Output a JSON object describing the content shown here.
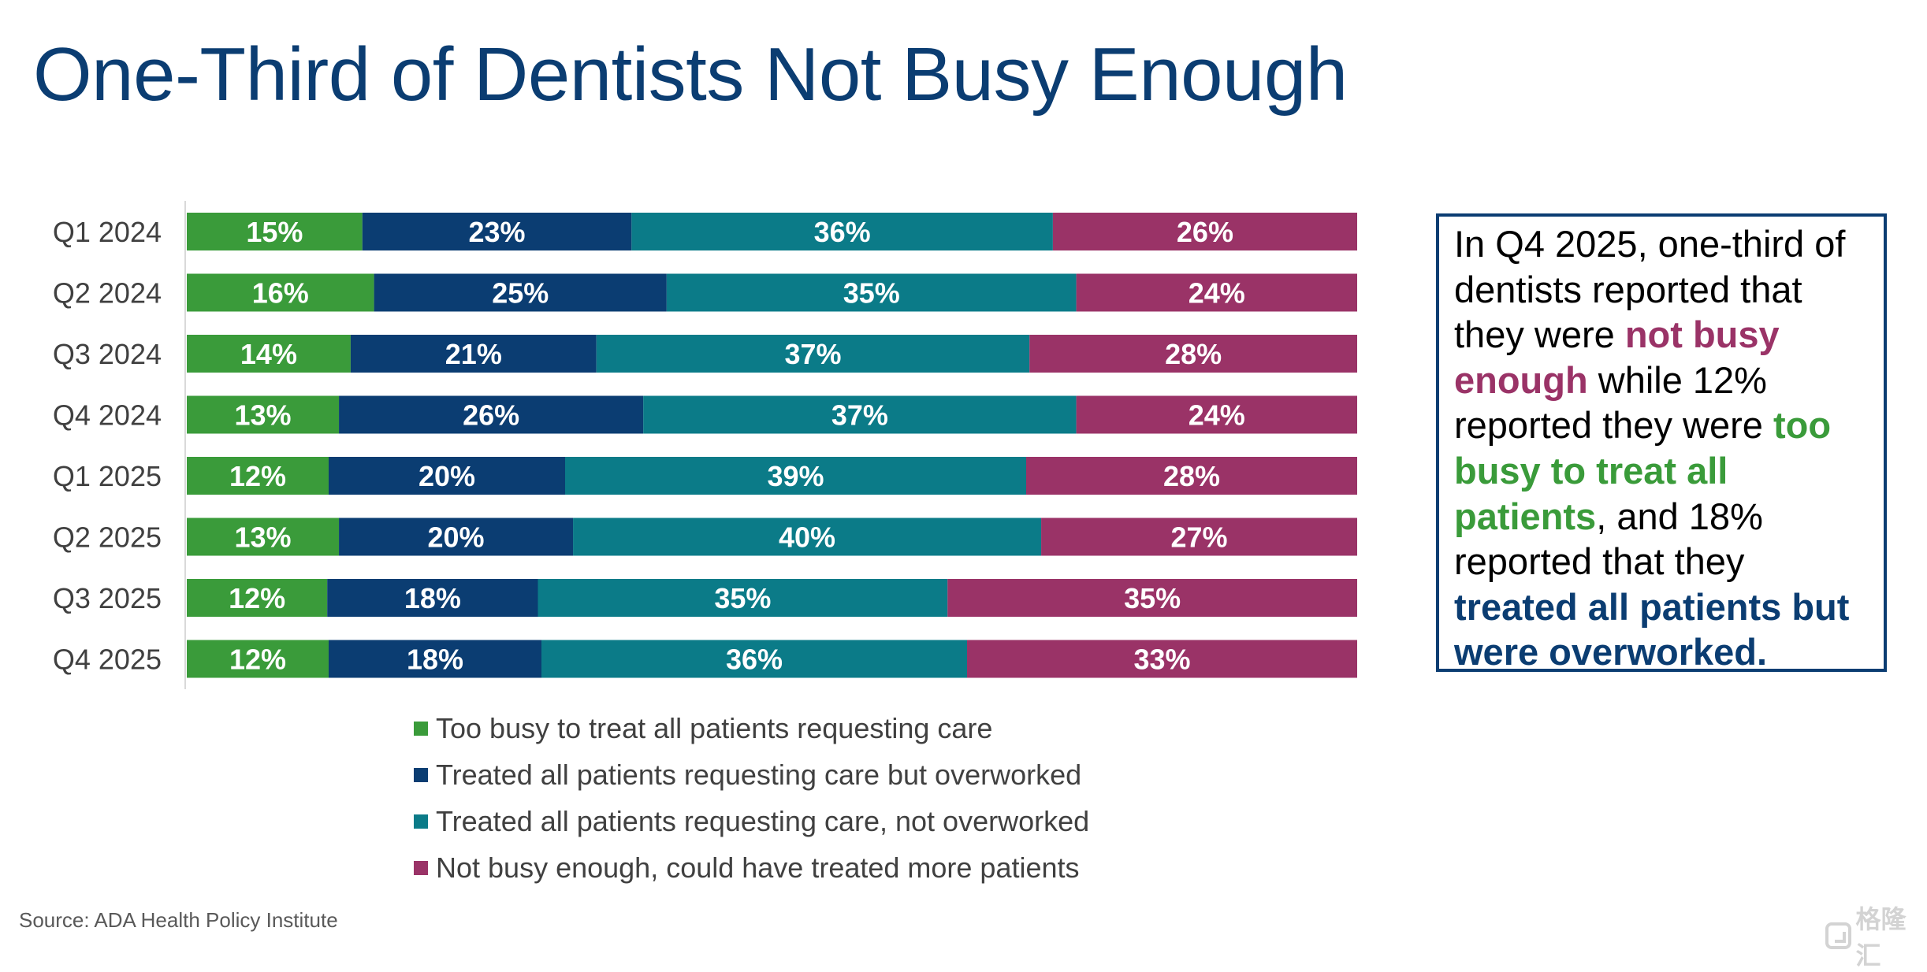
{
  "page": {
    "title": "One-Third of Dentists Not Busy Enough",
    "source": "Source: ADA Health Policy Institute",
    "watermark": "格隆汇"
  },
  "callout": {
    "parts": [
      {
        "text": "In Q4 2025, one-third of dentists reported that they were ",
        "style": "plain"
      },
      {
        "text": "not busy enough",
        "style": "maroon"
      },
      {
        "text": " while 12% reported they were ",
        "style": "plain"
      },
      {
        "text": "too busy to treat all patients",
        "style": "green"
      },
      {
        "text": ", and 18% reported that they ",
        "style": "plain"
      },
      {
        "text": "treated all patients but were overworked.",
        "style": "navy"
      }
    ]
  },
  "chart_data": {
    "type": "bar",
    "orientation": "horizontal",
    "stacked": true,
    "percent_stacked": true,
    "categories": [
      "Q1 2024",
      "Q2 2024",
      "Q3 2024",
      "Q4 2024",
      "Q1 2025",
      "Q2 2025",
      "Q3 2025",
      "Q4 2025"
    ],
    "series": [
      {
        "name": "Too busy to treat all patients requesting care",
        "color": "#3a9b3a",
        "values": [
          15,
          16,
          14,
          13,
          12,
          13,
          12,
          12
        ]
      },
      {
        "name": "Treated all patients requesting care but overworked",
        "color": "#0b3d72",
        "values": [
          23,
          25,
          21,
          26,
          20,
          20,
          18,
          18
        ]
      },
      {
        "name": "Treated all patients requesting care, not overworked",
        "color": "#0b7b88",
        "values": [
          36,
          35,
          37,
          37,
          39,
          40,
          35,
          36
        ]
      },
      {
        "name": "Not busy enough, could have treated more patients",
        "color": "#9a3367",
        "values": [
          26,
          24,
          28,
          24,
          28,
          27,
          35,
          33
        ]
      }
    ],
    "value_format": "{v}%",
    "legend_position": "bottom",
    "grid": false
  }
}
